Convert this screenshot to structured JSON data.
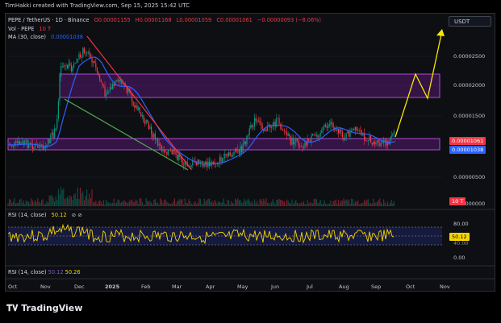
{
  "creator": "TimHakki created with TradingView.com, Sep 15, 2025 15:42 UTC",
  "symbol": {
    "name": "PEPE / TetherUS · 1D · Binance",
    "open": "O0.00001155",
    "high": "H0.00001168",
    "low": "L0.00001059",
    "close": "C0.00001061",
    "change": "−0.00000093 (−8.06%)"
  },
  "volume": {
    "label": "Vol · PEPE",
    "value": "10 T"
  },
  "ma": {
    "label": "MA (30, close)",
    "value": "0.00001038"
  },
  "currency_button": "USDT",
  "price_axis": [
    "0.00002500",
    "0.00002000",
    "0.00001500",
    "0.00000500",
    "0.00000000"
  ],
  "price_tags": {
    "last": "0.00001061",
    "ma": "0.00001038",
    "vol": "10 T"
  },
  "rsi": {
    "label": "RSI (14, close)",
    "value": "50.12",
    "axis": [
      "80.00",
      "40.00",
      "0.00"
    ],
    "tag": "50.12",
    "legend_label": "RSI (14, close)",
    "legend_value1": "50.12",
    "legend_value2": "50.26"
  },
  "x_axis": [
    "Oct",
    "Nov",
    "Dec",
    "2025",
    "Feb",
    "Mar",
    "Apr",
    "May",
    "Jun",
    "Jul",
    "Aug",
    "Sep",
    "Oct",
    "Nov"
  ],
  "footer": "TradingView",
  "colors": {
    "up": "#089981",
    "down": "#f23645",
    "ma": "#2962ff",
    "box": "#7b1fa2",
    "rsi": "#f7d600",
    "forecast": "#f7e600"
  }
}
